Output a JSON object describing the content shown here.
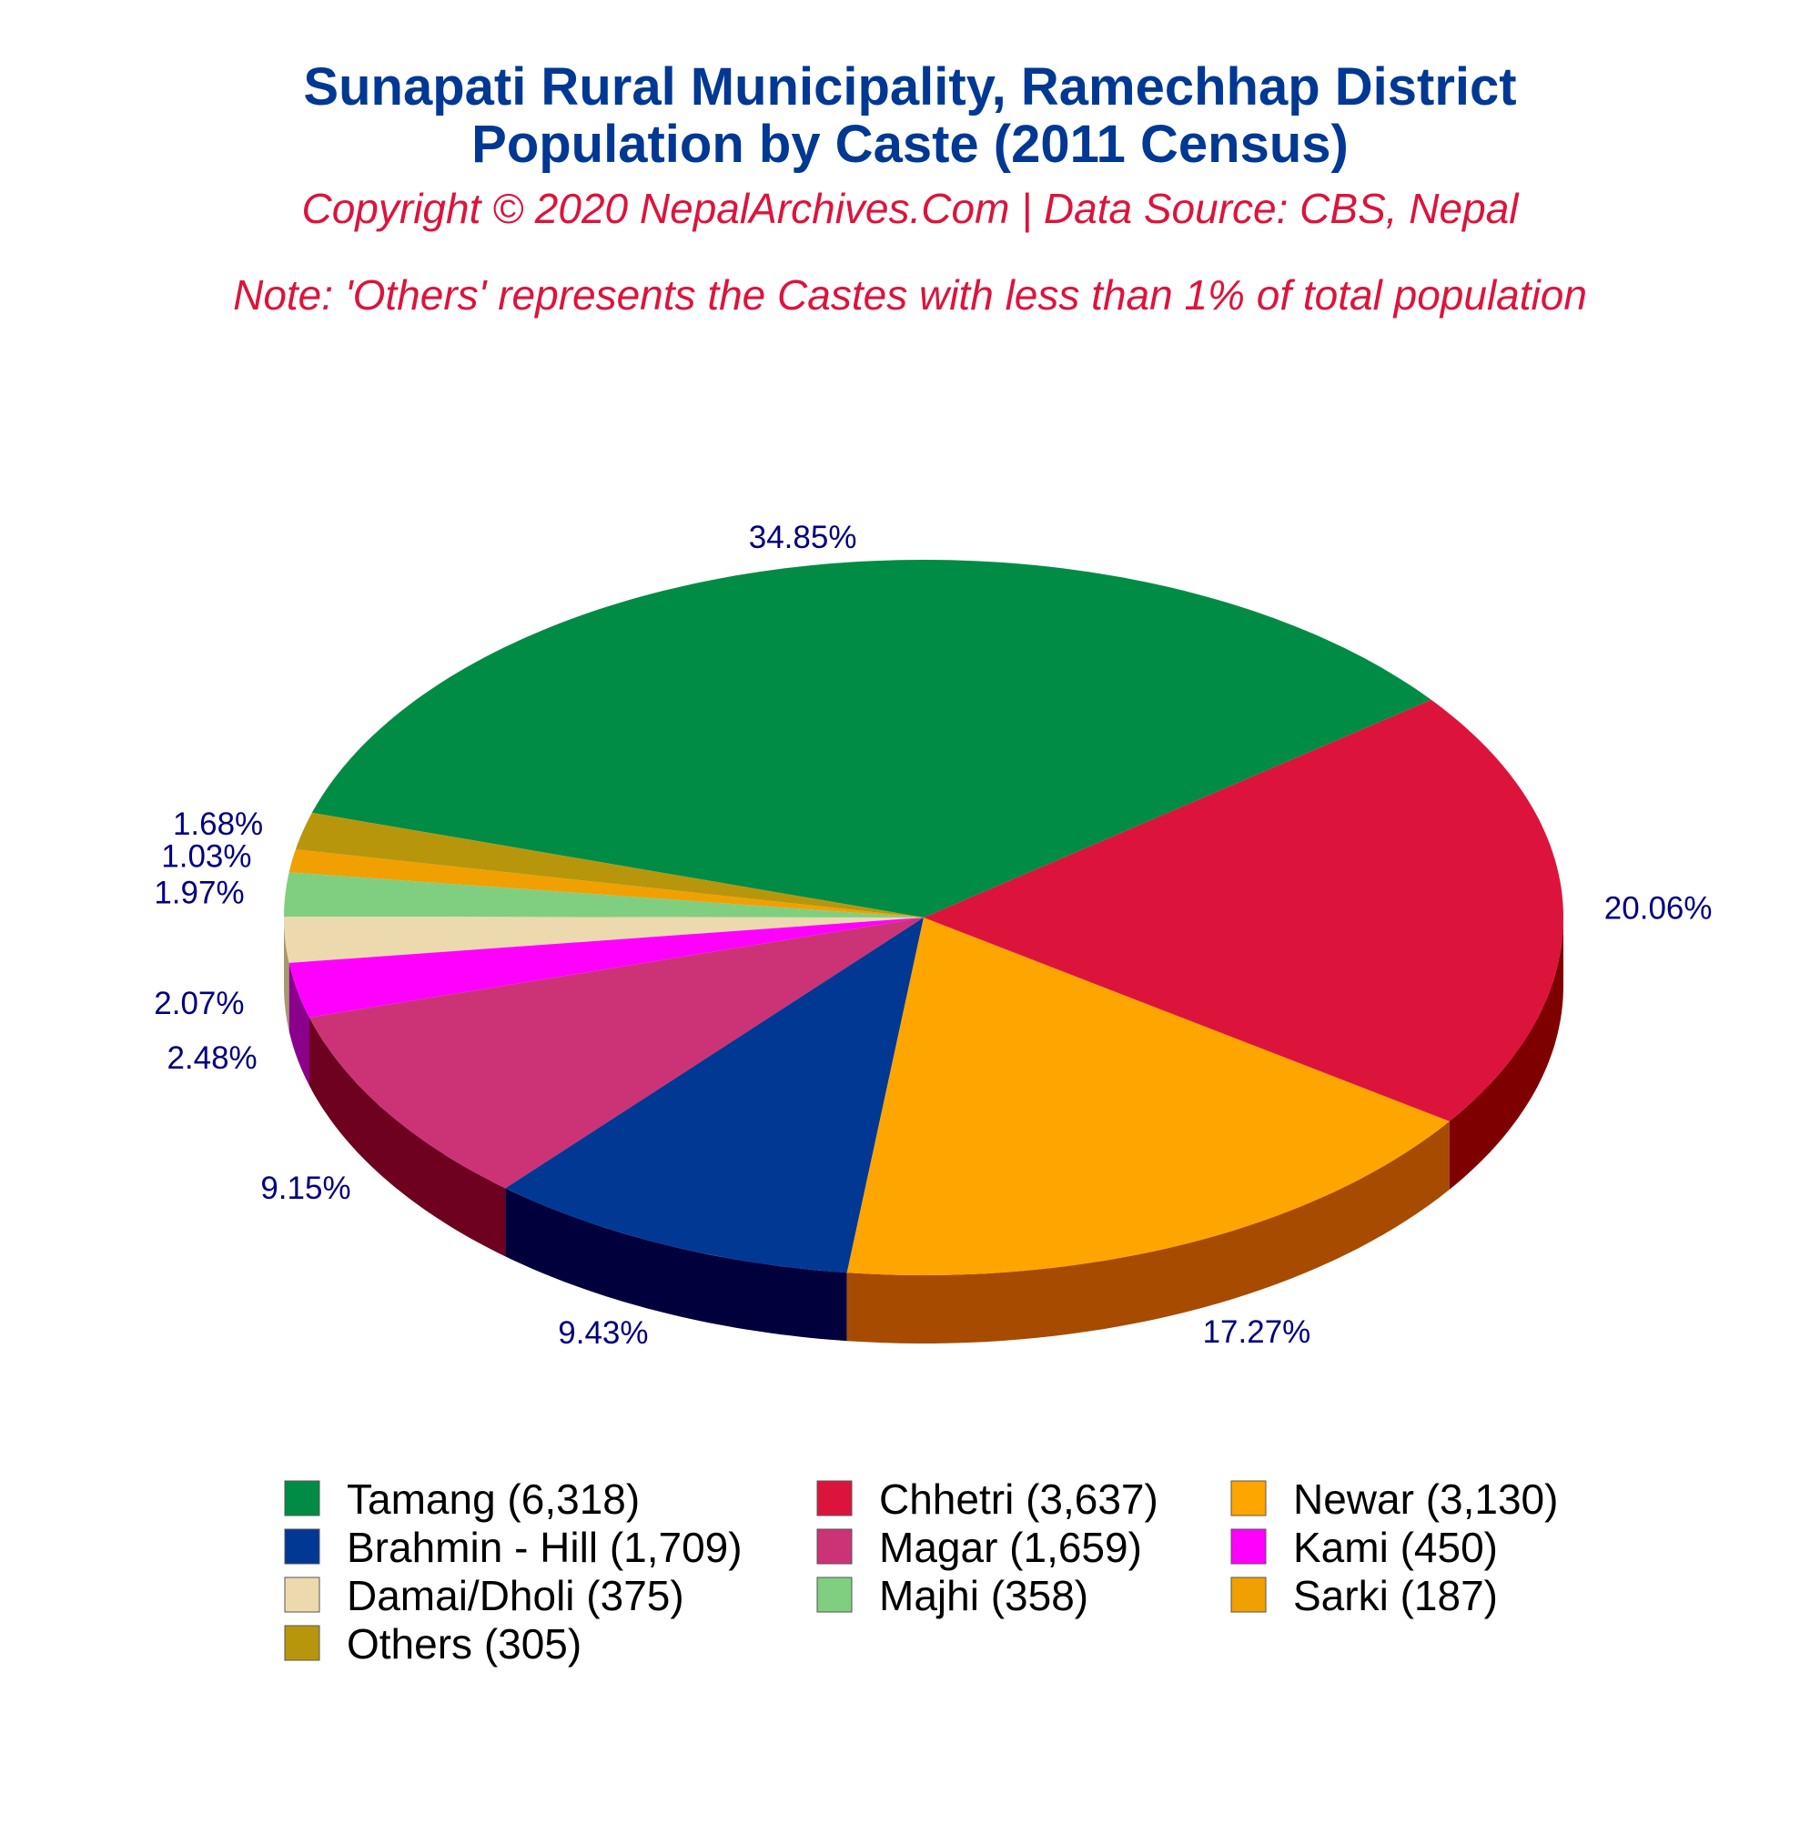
{
  "chart_data": {
    "type": "pie",
    "title_line1": "Sunapati Rural Municipality, Ramechhap District",
    "title_line2": "Population by Caste (2011 Census)",
    "copyright": "Copyright © 2020 NepalArchives.Com | Data Source: CBS, Nepal",
    "note": "Note: 'Others' represents the Castes with less than 1% of total population",
    "slices": [
      {
        "name": "Tamang",
        "value": 6318,
        "percent": 34.85,
        "percent_label": "34.85%",
        "legend_label": "Tamang (6,318)",
        "color": "#008C45",
        "side_color": "#005A2C"
      },
      {
        "name": "Others",
        "value": 305,
        "percent": 1.68,
        "percent_label": "1.68%",
        "legend_label": "Others (305)",
        "color": "#B8960C",
        "side_color": "#6E5A07"
      },
      {
        "name": "Sarki",
        "value": 187,
        "percent": 1.03,
        "percent_label": "1.03%",
        "legend_label": "Sarki (187)",
        "color": "#F0A000",
        "side_color": "#A86E00"
      },
      {
        "name": "Majhi",
        "value": 358,
        "percent": 1.97,
        "percent_label": "1.97%",
        "legend_label": "Majhi (358)",
        "color": "#80CF80",
        "side_color": "#4E8A4E"
      },
      {
        "name": "Damai/Dholi",
        "value": 375,
        "percent": 2.07,
        "percent_label": "2.07%",
        "legend_label": "Damai/Dholi (375)",
        "color": "#EDD9AE",
        "side_color": "#A89870"
      },
      {
        "name": "Kami",
        "value": 450,
        "percent": 2.48,
        "percent_label": "2.48%",
        "legend_label": "Kami (450)",
        "color": "#FF00FF",
        "side_color": "#8A008A"
      },
      {
        "name": "Magar",
        "value": 1659,
        "percent": 9.15,
        "percent_label": "9.15%",
        "legend_label": "Magar (1,659)",
        "color": "#CC3377",
        "side_color": "#6E0020"
      },
      {
        "name": "Brahmin - Hill",
        "value": 1709,
        "percent": 9.43,
        "percent_label": "9.43%",
        "legend_label": "Brahmin - Hill (1,709)",
        "color": "#003893",
        "side_color": "#00003D"
      },
      {
        "name": "Newar",
        "value": 3130,
        "percent": 17.27,
        "percent_label": "17.27%",
        "legend_label": "Newar (3,130)",
        "color": "#FFA500",
        "side_color": "#A64B00"
      },
      {
        "name": "Chhetri",
        "value": 3637,
        "percent": 20.06,
        "percent_label": "20.06%",
        "legend_label": "Chhetri (3,637)",
        "color": "#DC143C",
        "side_color": "#7F0000"
      }
    ],
    "legend_order": [
      "Tamang",
      "Chhetri",
      "Newar",
      "Brahmin - Hill",
      "Magar",
      "Kami",
      "Damai/Dholi",
      "Majhi",
      "Sarki",
      "Others"
    ],
    "legend_placement": "bottom"
  }
}
